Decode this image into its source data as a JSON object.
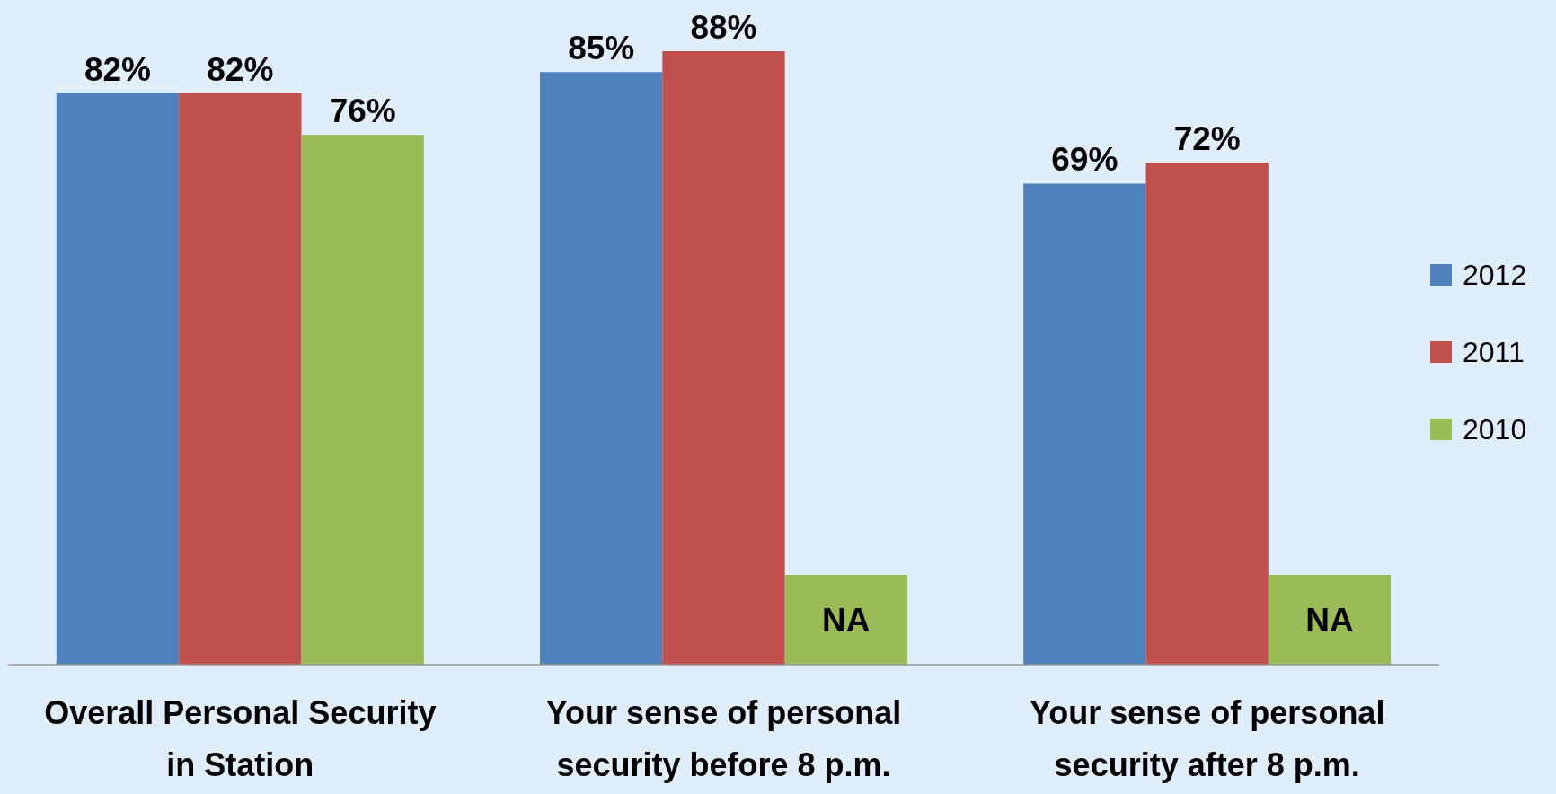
{
  "chart_data": {
    "type": "bar",
    "categories": [
      "Overall Personal Security in Station",
      "Your sense of personal security before 8 p.m.",
      "Your sense of personal security after 8 p.m."
    ],
    "series": [
      {
        "name": "2012",
        "color": "#4f81bd",
        "values": [
          82,
          85,
          69
        ],
        "value_labels": [
          "82%",
          "85%",
          "69%"
        ]
      },
      {
        "name": "2011",
        "color": "#c0504d",
        "values": [
          82,
          88,
          72
        ],
        "value_labels": [
          "82%",
          "88%",
          "72%"
        ]
      },
      {
        "name": "2010",
        "color": "#9bbb59",
        "values": [
          76,
          null,
          null
        ],
        "value_labels": [
          "76%",
          "NA",
          "NA"
        ]
      }
    ],
    "legend": "right",
    "grid": false
  }
}
